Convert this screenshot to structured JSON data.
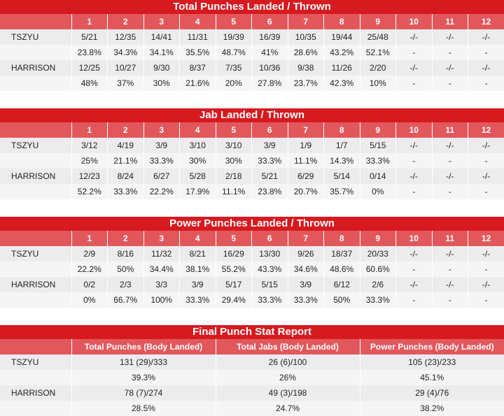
{
  "sections": [
    {
      "title": "Total Punches Landed / Thrown",
      "rounds": [
        "1",
        "2",
        "3",
        "4",
        "5",
        "6",
        "7",
        "8",
        "9",
        "10",
        "11",
        "12"
      ],
      "fighters": [
        {
          "name": "TSZYU",
          "landed": [
            "5/21",
            "12/35",
            "14/41",
            "11/31",
            "19/39",
            "16/39",
            "10/35",
            "19/44",
            "25/48",
            "-/-",
            "-/-",
            "-/-"
          ],
          "pct": [
            "23.8%",
            "34.3%",
            "34.1%",
            "35.5%",
            "48.7%",
            "41%",
            "28.6%",
            "43.2%",
            "52.1%",
            "-",
            "-",
            "-"
          ]
        },
        {
          "name": "HARRISON",
          "landed": [
            "12/25",
            "10/27",
            "9/30",
            "8/37",
            "7/35",
            "10/36",
            "9/38",
            "11/26",
            "2/20",
            "-/-",
            "-/-",
            "-/-"
          ],
          "pct": [
            "48%",
            "37%",
            "30%",
            "21.6%",
            "20%",
            "27.8%",
            "23.7%",
            "42.3%",
            "10%",
            "-",
            "-",
            "-"
          ]
        }
      ]
    },
    {
      "title": "Jab Landed / Thrown",
      "rounds": [
        "1",
        "2",
        "3",
        "4",
        "5",
        "6",
        "7",
        "8",
        "9",
        "10",
        "11",
        "12"
      ],
      "fighters": [
        {
          "name": "TSZYU",
          "landed": [
            "3/12",
            "4/19",
            "3/9",
            "3/10",
            "3/10",
            "3/9",
            "1/9",
            "1/7",
            "5/15",
            "-/-",
            "-/-",
            "-/-"
          ],
          "pct": [
            "25%",
            "21.1%",
            "33.3%",
            "30%",
            "30%",
            "33.3%",
            "11.1%",
            "14.3%",
            "33.3%",
            "-",
            "-",
            "-"
          ]
        },
        {
          "name": "HARRISON",
          "landed": [
            "12/23",
            "8/24",
            "6/27",
            "5/28",
            "2/18",
            "5/21",
            "6/29",
            "5/14",
            "0/14",
            "-/-",
            "-/-",
            "-/-"
          ],
          "pct": [
            "52.2%",
            "33.3%",
            "22.2%",
            "17.9%",
            "11.1%",
            "23.8%",
            "20.7%",
            "35.7%",
            "0%",
            "-",
            "-",
            "-"
          ]
        }
      ]
    },
    {
      "title": "Power Punches Landed / Thrown",
      "rounds": [
        "1",
        "2",
        "3",
        "4",
        "5",
        "6",
        "7",
        "8",
        "9",
        "10",
        "11",
        "12"
      ],
      "fighters": [
        {
          "name": "TSZYU",
          "landed": [
            "2/9",
            "8/16",
            "11/32",
            "8/21",
            "16/29",
            "13/30",
            "9/26",
            "18/37",
            "20/33",
            "-/-",
            "-/-",
            "-/-"
          ],
          "pct": [
            "22.2%",
            "50%",
            "34.4%",
            "38.1%",
            "55.2%",
            "43.3%",
            "34.6%",
            "48.6%",
            "60.6%",
            "-",
            "-",
            "-"
          ]
        },
        {
          "name": "HARRISON",
          "landed": [
            "0/2",
            "2/3",
            "3/3",
            "3/9",
            "5/17",
            "5/15",
            "3/9",
            "6/12",
            "2/6",
            "-/-",
            "-/-",
            "-/-"
          ],
          "pct": [
            "0%",
            "66.7%",
            "100%",
            "33.3%",
            "29.4%",
            "33.3%",
            "33.3%",
            "50%",
            "33.3%",
            "-",
            "-",
            "-"
          ]
        }
      ]
    }
  ],
  "final": {
    "title": "Final Punch Stat Report",
    "headers": [
      "Total Punches (Body Landed)",
      "Total Jabs (Body Landed)",
      "Power Punches (Body Landed)"
    ],
    "fighters": [
      {
        "name": "TSZYU",
        "values": [
          "131 (29)/333",
          "26 (6)/100",
          "105 (23)/233"
        ],
        "pct": [
          "39.3%",
          "26%",
          "45.1%"
        ]
      },
      {
        "name": "HARRISON",
        "values": [
          "78 (7)/274",
          "49 (3)/198",
          "29 (4)/76"
        ],
        "pct": [
          "28.5%",
          "24.7%",
          "38.2%"
        ]
      }
    ]
  },
  "colors": {
    "title_bg": "#d71920",
    "header_bg": "#e2575b",
    "row_a": "#ececec",
    "row_b": "#f5f5f5"
  }
}
